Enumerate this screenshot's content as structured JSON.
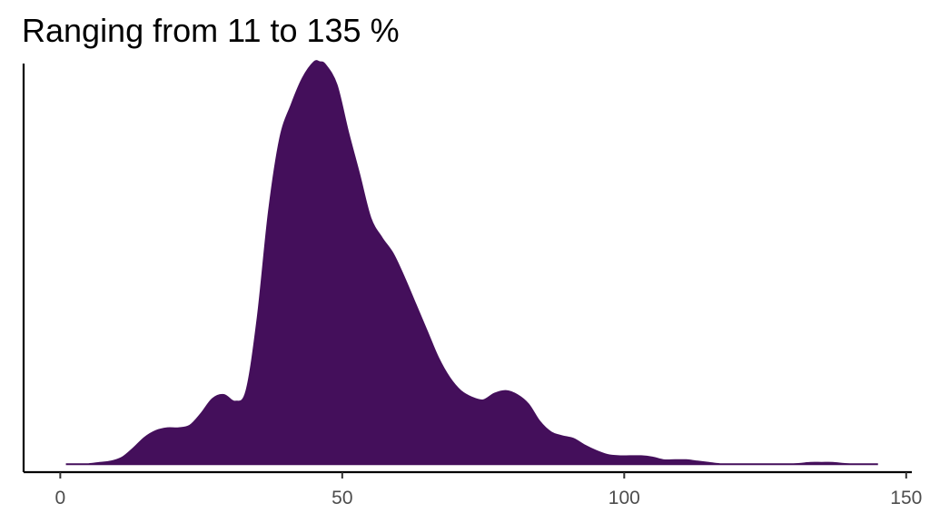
{
  "chart_data": {
    "type": "area",
    "title": "Ranging from 11 to 135 %",
    "xlabel": "",
    "ylabel": "",
    "xlim": [
      -6.5,
      151
    ],
    "ylim": [
      -0.0006,
      0.0301
    ],
    "xticks": [
      0,
      50,
      100,
      150
    ],
    "y_axis_ticks_shown": false,
    "grid": false,
    "legend": "none",
    "fill_color": "#440f5b",
    "series": [
      {
        "x": [
          1,
          3,
          5,
          7,
          9,
          11,
          13,
          15,
          17,
          19,
          21,
          23,
          25,
          27,
          29,
          31,
          33,
          35,
          37,
          39,
          41,
          43,
          45,
          46,
          47,
          49,
          51,
          53,
          55,
          57,
          59,
          61,
          63,
          65,
          67,
          69,
          71,
          73,
          75,
          77,
          79,
          81,
          83,
          85,
          87,
          89,
          91,
          93,
          95,
          97,
          99,
          101,
          103,
          105,
          107,
          109,
          111,
          113,
          115,
          117,
          120,
          125,
          130,
          133,
          135,
          137,
          140,
          145
        ],
        "y": [
          0.0,
          0.0,
          0.0,
          0.0001,
          0.0002,
          0.0005,
          0.0012,
          0.002,
          0.0025,
          0.0027,
          0.0027,
          0.0029,
          0.0038,
          0.0049,
          0.0052,
          0.0047,
          0.0055,
          0.011,
          0.019,
          0.0245,
          0.027,
          0.029,
          0.0302,
          0.0302,
          0.03,
          0.0285,
          0.025,
          0.0218,
          0.0185,
          0.017,
          0.0158,
          0.014,
          0.012,
          0.01,
          0.008,
          0.0065,
          0.0055,
          0.005,
          0.0048,
          0.0053,
          0.0055,
          0.0052,
          0.0045,
          0.0032,
          0.0024,
          0.0021,
          0.0019,
          0.0014,
          0.001,
          0.0007,
          0.0006,
          0.0006,
          0.0006,
          0.0005,
          0.0003,
          0.0003,
          0.0003,
          0.0002,
          0.0001,
          0.0,
          0.0,
          0.0,
          0.0,
          0.0001,
          0.0001,
          0.0001,
          0.0,
          0.0
        ]
      }
    ]
  }
}
